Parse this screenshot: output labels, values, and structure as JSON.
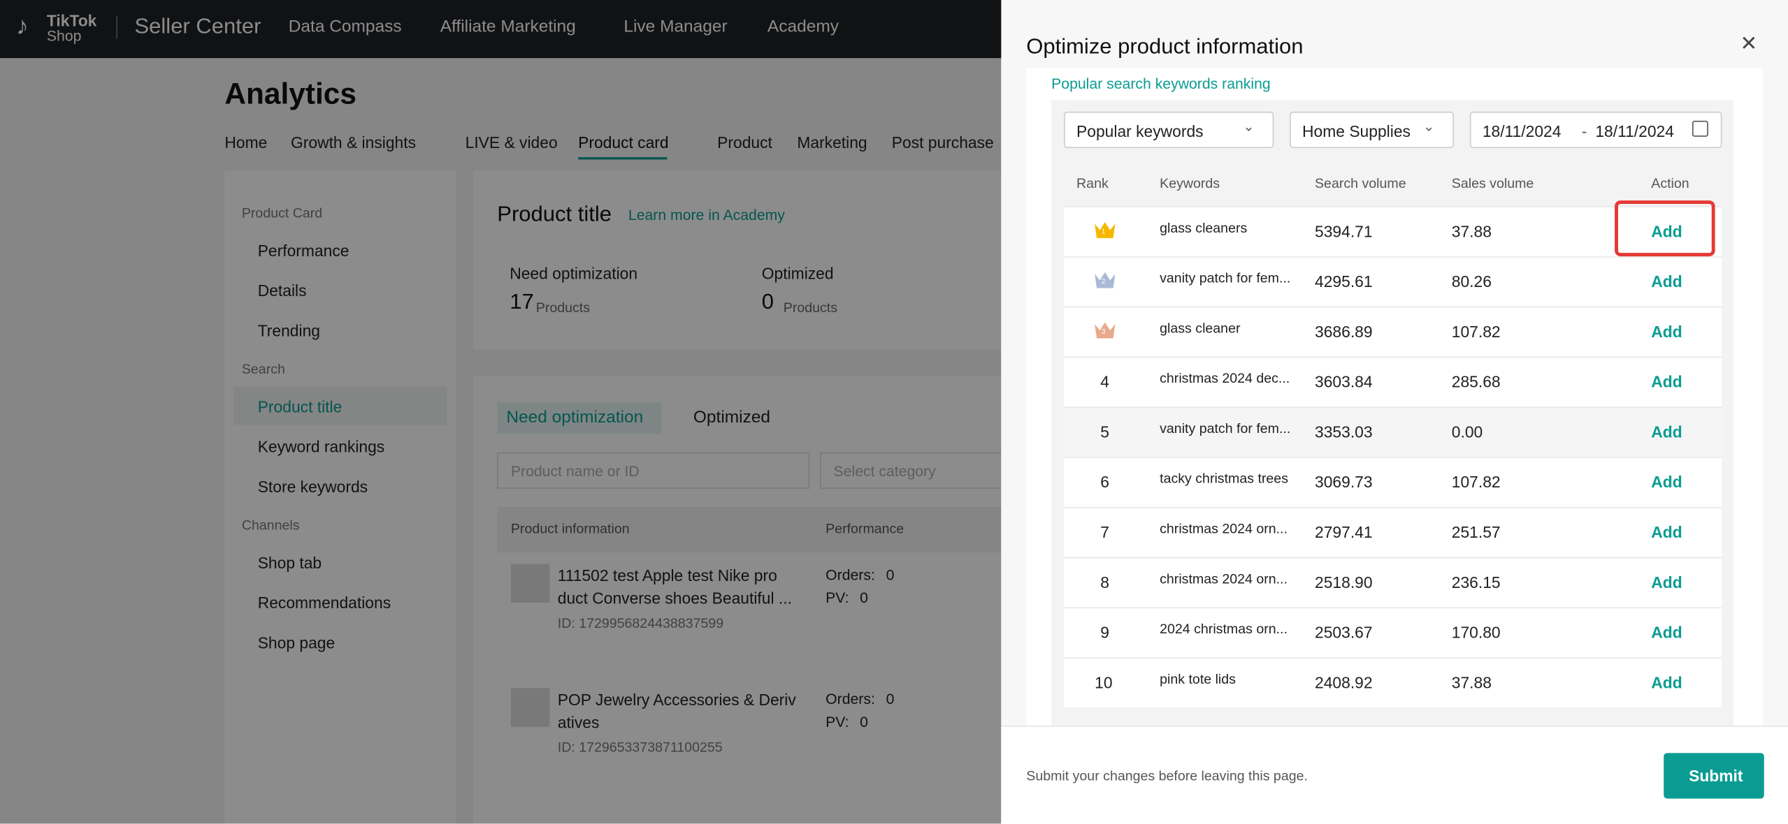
{
  "header": {
    "logo_top": "TikTok",
    "logo_bottom": "Shop",
    "brand": "Seller Center",
    "nav": [
      "Data Compass",
      "Affiliate Marketing",
      "Live Manager",
      "Academy"
    ]
  },
  "page": {
    "title": "Analytics",
    "tabs": [
      "Home",
      "Growth & insights",
      "LIVE & video",
      "Product card",
      "Product",
      "Marketing",
      "Post purchase"
    ]
  },
  "sidebar": [
    {
      "section": "Product Card",
      "items": [
        "Performance",
        "Details",
        "Trending"
      ]
    },
    {
      "section": "Search",
      "items": [
        "Product title",
        "Keyword rankings",
        "Store keywords"
      ]
    },
    {
      "section": "Channels",
      "items": [
        "Shop tab",
        "Recommendations",
        "Shop page"
      ]
    }
  ],
  "main": {
    "title": "Product title",
    "link": "Learn more in Academy",
    "stats": [
      {
        "label": "Need optimization",
        "value": 17,
        "unit": "Products"
      },
      {
        "label": "Optimized",
        "value": 0,
        "unit": "Products"
      }
    ],
    "tabs": [
      "Need optimization",
      "Optimized"
    ],
    "search_placeholder": "Product name or ID",
    "category_placeholder": "Select category",
    "columns": [
      "Product information",
      "Performance"
    ],
    "products": [
      {
        "name_line1": "111502 test Apple test Nike pro",
        "name_line2": "duct Converse shoes Beautiful ...",
        "id": "ID: 1729956824438837599",
        "orders_label": "Orders:",
        "orders": 0,
        "pv_label": "PV:",
        "pv": 0
      },
      {
        "name_line1": "POP Jewelry Accessories & Deriv",
        "name_line2": "atives",
        "id": "ID: 1729653373871100255",
        "orders_label": "Orders:",
        "orders": 0,
        "pv_label": "PV:",
        "pv": 0
      }
    ]
  },
  "drawer": {
    "title": "Optimize product information",
    "section": "Popular search keywords ranking",
    "filter_type": "Popular keywords",
    "filter_category": "Home Supplies",
    "date_start": "18/11/2024",
    "date_sep": "-",
    "date_end": "18/11/2024",
    "columns": [
      "Rank",
      "Keywords",
      "Search volume",
      "Sales volume",
      "Action"
    ],
    "rows": [
      {
        "rank": 1,
        "keyword": "glass cleaners",
        "search_volume": "5394.71",
        "sales_volume": "37.88",
        "action": "Add"
      },
      {
        "rank": 2,
        "keyword": "vanity patch for fem...",
        "search_volume": "4295.61",
        "sales_volume": "80.26",
        "action": "Add"
      },
      {
        "rank": 3,
        "keyword": "glass cleaner",
        "search_volume": "3686.89",
        "sales_volume": "107.82",
        "action": "Add"
      },
      {
        "rank": 4,
        "keyword": "christmas 2024 dec...",
        "search_volume": "3603.84",
        "sales_volume": "285.68",
        "action": "Add"
      },
      {
        "rank": 5,
        "keyword": "vanity patch for fem...",
        "search_volume": "3353.03",
        "sales_volume": "0.00",
        "action": "Add"
      },
      {
        "rank": 6,
        "keyword": "tacky christmas trees",
        "search_volume": "3069.73",
        "sales_volume": "107.82",
        "action": "Add"
      },
      {
        "rank": 7,
        "keyword": "christmas 2024 orn...",
        "search_volume": "2797.41",
        "sales_volume": "251.57",
        "action": "Add"
      },
      {
        "rank": 8,
        "keyword": "christmas 2024 orn...",
        "search_volume": "2518.90",
        "sales_volume": "236.15",
        "action": "Add"
      },
      {
        "rank": 9,
        "keyword": "2024 christmas orn...",
        "search_volume": "2503.67",
        "sales_volume": "170.80",
        "action": "Add"
      },
      {
        "rank": 10,
        "keyword": "pink tote lids",
        "search_volume": "2408.92",
        "sales_volume": "37.88",
        "action": "Add"
      }
    ],
    "footer_note": "Submit your changes before leaving this page.",
    "submit": "Submit"
  }
}
